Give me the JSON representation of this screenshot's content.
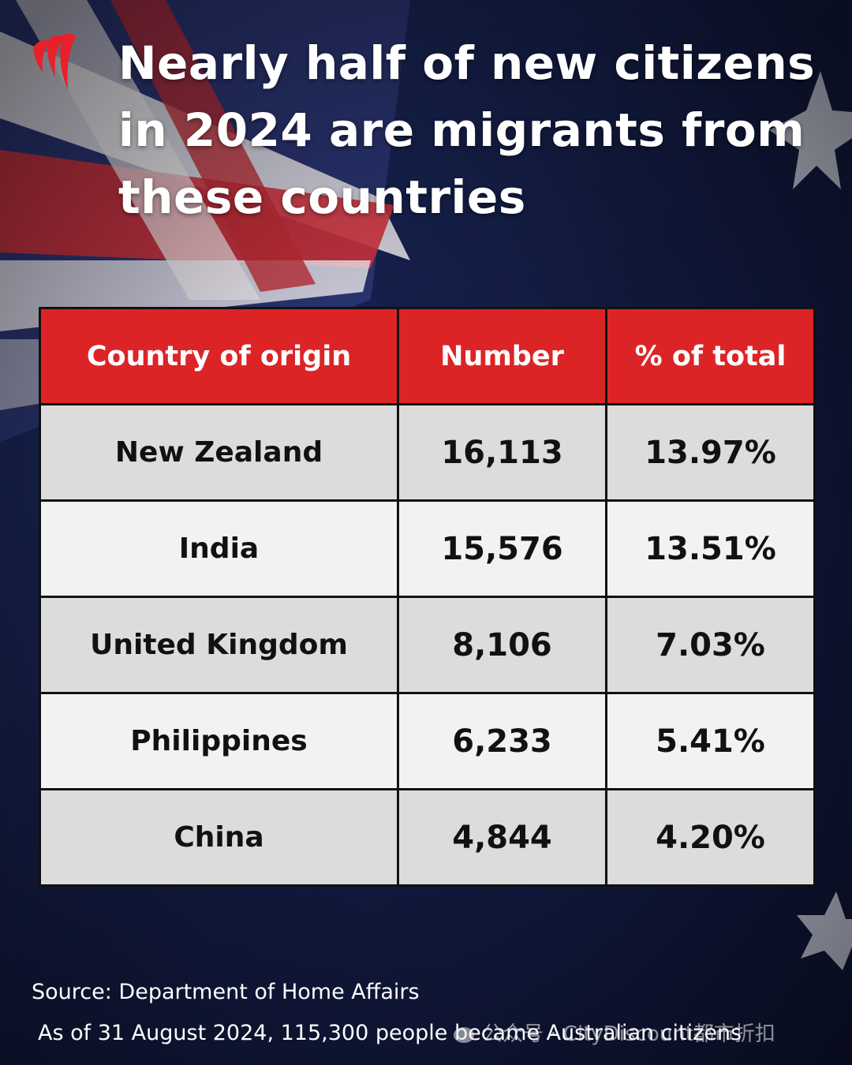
{
  "headline": {
    "lines": [
      "Nearly half of new citizens",
      "in 2024 are migrants from",
      "these countries"
    ]
  },
  "colors": {
    "header_red": "#dc2426",
    "row_dark": "#dcdcdc",
    "row_light": "#f2f2f2",
    "navy": "#16204a"
  },
  "chart_data": {
    "type": "table",
    "columns": [
      "Country of origin",
      "Number",
      "% of total"
    ],
    "rows": [
      [
        "New Zealand",
        "16,113",
        "13.97%"
      ],
      [
        "India",
        "15,576",
        "13.51%"
      ],
      [
        "United Kingdom",
        "8,106",
        "7.03%"
      ],
      [
        "Philippines",
        "6,233",
        "5.41%"
      ],
      [
        "China",
        "4,844",
        "4.20%"
      ]
    ]
  },
  "footer": {
    "source": "Source: Department of Home Affairs",
    "note": "As of 31 August 2024, 115,300 people became Australian citizens"
  },
  "watermark": {
    "text": "公众号 · CityDiscount都市折扣",
    "icon": "wechat-icon"
  }
}
